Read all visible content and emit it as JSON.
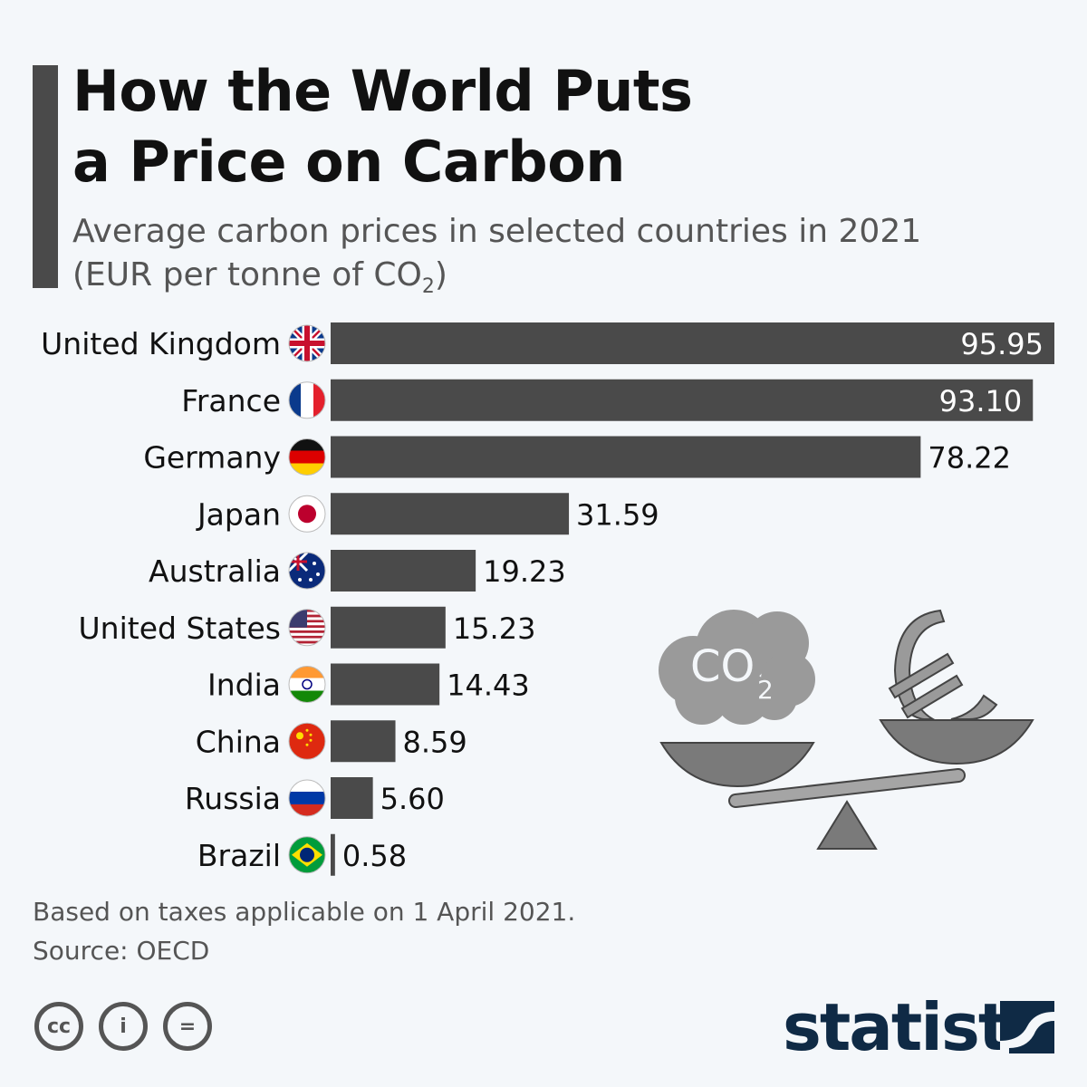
{
  "header": {
    "title_line1": "How the World Puts",
    "title_line2": "a Price on Carbon",
    "subtitle_line1": "Average carbon prices in selected countries in 2021",
    "subtitle_line2_pre": "(EUR per tonne of CO",
    "subtitle_line2_sub": "2",
    "subtitle_line2_post": ")"
  },
  "chart_data": {
    "type": "bar",
    "orientation": "horizontal",
    "title": "How the World Puts a Price on Carbon",
    "subtitle": "Average carbon prices in selected countries in 2021 (EUR per tonne of CO2)",
    "categories": [
      "United Kingdom",
      "France",
      "Germany",
      "Japan",
      "Australia",
      "United States",
      "India",
      "China",
      "Russia",
      "Brazil"
    ],
    "values": [
      95.95,
      93.1,
      78.22,
      31.59,
      19.23,
      15.23,
      14.43,
      8.59,
      5.6,
      0.58
    ],
    "value_labels": [
      "95.95",
      "93.10",
      "78.22",
      "31.59",
      "19.23",
      "15.23",
      "14.43",
      "8.59",
      "5.60",
      "0.58"
    ],
    "flags": [
      "uk",
      "fr",
      "de",
      "jp",
      "au",
      "us",
      "in",
      "cn",
      "ru",
      "br"
    ],
    "xlim": [
      0,
      95.95
    ],
    "grid": false,
    "bar_color": "#4a4a4a"
  },
  "illustration": {
    "cloud_text": "CO",
    "cloud_sub": "2"
  },
  "footer": {
    "note": "Based on taxes applicable on 1 April 2021.",
    "source": "Source: OECD",
    "license_icons": [
      "cc",
      "by",
      "nd"
    ],
    "license_labels": [
      "cc",
      "i",
      "="
    ],
    "logo": "statista"
  },
  "colors": {
    "background": "#f4f7fa",
    "bar": "#4a4a4a",
    "logo": "#0f2a45"
  }
}
